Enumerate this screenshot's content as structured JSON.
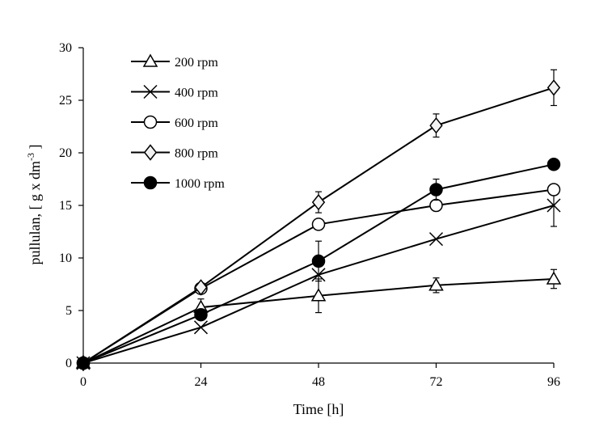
{
  "chart_data": {
    "type": "line",
    "title": "",
    "xlabel": "Time [h]",
    "ylabel": "pullulan,  [ g x dm",
    "ylabel_sup": "-3",
    "ylabel_close": " ]",
    "x": [
      0,
      24,
      48,
      72,
      96
    ],
    "x_ticks": [
      "0",
      "24",
      "48",
      "72",
      "96"
    ],
    "y_ticks": [
      "0",
      "5",
      "10",
      "15",
      "20",
      "25",
      "30"
    ],
    "xlim": [
      0,
      96
    ],
    "ylim": [
      0,
      30
    ],
    "grid": false,
    "legend_position": "top-left",
    "series": [
      {
        "name": "200 rpm",
        "marker": "triangle-open",
        "values": [
          0,
          5.3,
          6.4,
          7.4,
          8.0
        ],
        "errors": [
          0,
          0.8,
          1.6,
          0.7,
          0.9
        ]
      },
      {
        "name": "400 rpm",
        "marker": "x",
        "values": [
          0,
          3.4,
          8.4,
          11.8,
          15.0
        ],
        "errors": [
          0,
          0,
          0,
          0,
          2.0
        ]
      },
      {
        "name": "600 rpm",
        "marker": "circle-open",
        "values": [
          0,
          7.1,
          13.2,
          15.0,
          16.5
        ],
        "errors": [
          0,
          0,
          0,
          0,
          0
        ]
      },
      {
        "name": "800 rpm",
        "marker": "diamond-open",
        "values": [
          0,
          7.2,
          15.3,
          22.6,
          26.2
        ],
        "errors": [
          0,
          0,
          1.0,
          1.1,
          1.7
        ]
      },
      {
        "name": "1000 rpm",
        "marker": "circle-filled",
        "values": [
          0,
          4.6,
          9.7,
          16.5,
          18.9
        ],
        "errors": [
          0,
          0,
          1.9,
          1.0,
          0
        ]
      }
    ]
  }
}
